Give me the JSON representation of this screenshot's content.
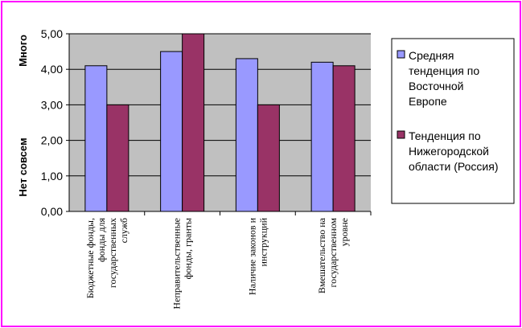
{
  "chart_data": {
    "type": "bar",
    "categories": [
      [
        "Бюджетные фонды,",
        "фонды для",
        "государственных",
        "служб"
      ],
      [
        "Неправительственные",
        "фонды, гранты"
      ],
      [
        "Наличие законов и",
        "инструкций"
      ],
      [
        "Вмешательство на",
        "государственном",
        "уровне"
      ]
    ],
    "series": [
      {
        "name": "Средняя тенденция по Восточной Европе",
        "legend_lines": [
          "Средняя",
          "тенденция по",
          "Восточной",
          "Европе"
        ],
        "color": "#9999ff",
        "values": [
          4.1,
          4.5,
          4.3,
          4.2
        ]
      },
      {
        "name": "Тенденция по Нижегородской области (Россия)",
        "legend_lines": [
          "Тенденция по",
          "Нижегородской",
          "области (Россия)"
        ],
        "color": "#993366",
        "values": [
          3.0,
          5.0,
          3.0,
          4.1
        ]
      }
    ],
    "ylim": [
      0,
      5
    ],
    "yticks": [
      "0,00",
      "1,00",
      "2,00",
      "3,00",
      "4,00",
      "5,00"
    ],
    "y_words": {
      "top": "Много",
      "bottom": "Нет совсем"
    },
    "plot_background": "#c0c0c0",
    "grid": true,
    "legend_position": "right"
  }
}
